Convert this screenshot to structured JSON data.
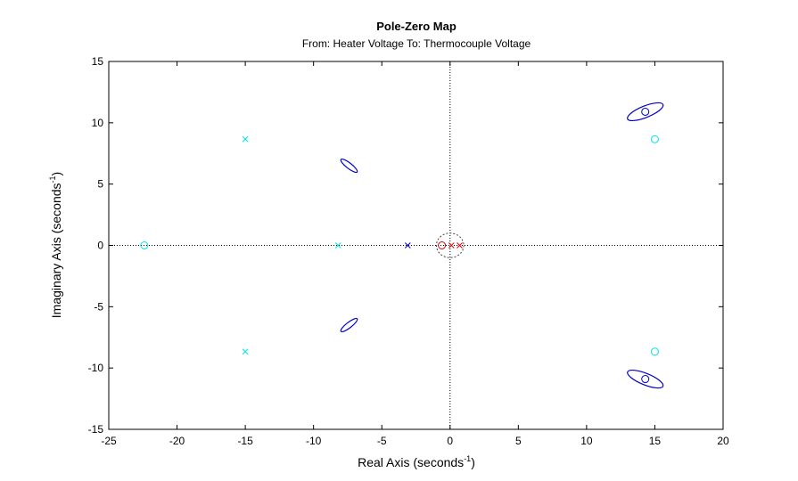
{
  "chart_data": {
    "type": "scatter",
    "title": "Pole-Zero Map",
    "subtitle": "From: Heater Voltage  To: Thermocouple Voltage",
    "xlabel": {
      "main": "Real  Axis  (seconds",
      "sup": "-1",
      "tail": ")"
    },
    "ylabel": {
      "main": "Imaginary  Axis  (seconds",
      "sup": "-1",
      "tail": ")"
    },
    "xlim": [
      -25,
      20
    ],
    "ylim": [
      -15,
      15
    ],
    "xticks": [
      -25,
      -20,
      -15,
      -10,
      -5,
      0,
      5,
      10,
      15,
      20
    ],
    "yticks": [
      -15,
      -10,
      -5,
      0,
      5,
      10,
      15
    ],
    "xtick_labels": [
      "-25",
      "-20",
      "-15",
      "-10",
      "-5",
      "0",
      "5",
      "10",
      "15",
      "20"
    ],
    "ytick_labels": [
      "-15",
      "-10",
      "-5",
      "0",
      "5",
      "10",
      "15"
    ],
    "reference_lines": {
      "x": 0,
      "y": 0,
      "style": "dotted"
    },
    "colors": {
      "cyan": "#00e5e5",
      "blue": "#0000cc",
      "red": "#dd0000",
      "gray": "#444444"
    },
    "series": [
      {
        "color_key": "cyan",
        "poles": [
          [
            -15,
            8.66
          ],
          [
            -15,
            -8.66
          ],
          [
            -8.2,
            0
          ]
        ],
        "zeros": [
          [
            -22.4,
            0
          ],
          [
            15,
            8.66
          ],
          [
            15,
            -8.66
          ]
        ]
      },
      {
        "color_key": "blue",
        "poles": [
          [
            -3.1,
            0
          ]
        ],
        "zeros": [
          [
            14.3,
            10.9
          ],
          [
            14.3,
            -10.9
          ]
        ],
        "confidence_ellipses": [
          {
            "center": [
              14.3,
              10.9
            ],
            "rx": 1.4,
            "ry": 0.42,
            "angle_deg": -22
          },
          {
            "center": [
              14.3,
              -10.9
            ],
            "rx": 1.4,
            "ry": 0.42,
            "angle_deg": 22
          },
          {
            "center": [
              -7.4,
              6.5
            ],
            "rx": 0.75,
            "ry": 0.2,
            "angle_deg": 38
          },
          {
            "center": [
              -7.4,
              -6.5
            ],
            "rx": 0.75,
            "ry": 0.2,
            "angle_deg": -38
          }
        ]
      },
      {
        "color_key": "red",
        "poles": [
          [
            0.1,
            0
          ],
          [
            0.7,
            0
          ]
        ],
        "zeros": [
          [
            -0.6,
            0
          ]
        ]
      }
    ],
    "dotted_circle": {
      "center": [
        0,
        0
      ],
      "radius": 1.0,
      "color_key": "gray"
    },
    "grid": false,
    "legend": "none"
  }
}
